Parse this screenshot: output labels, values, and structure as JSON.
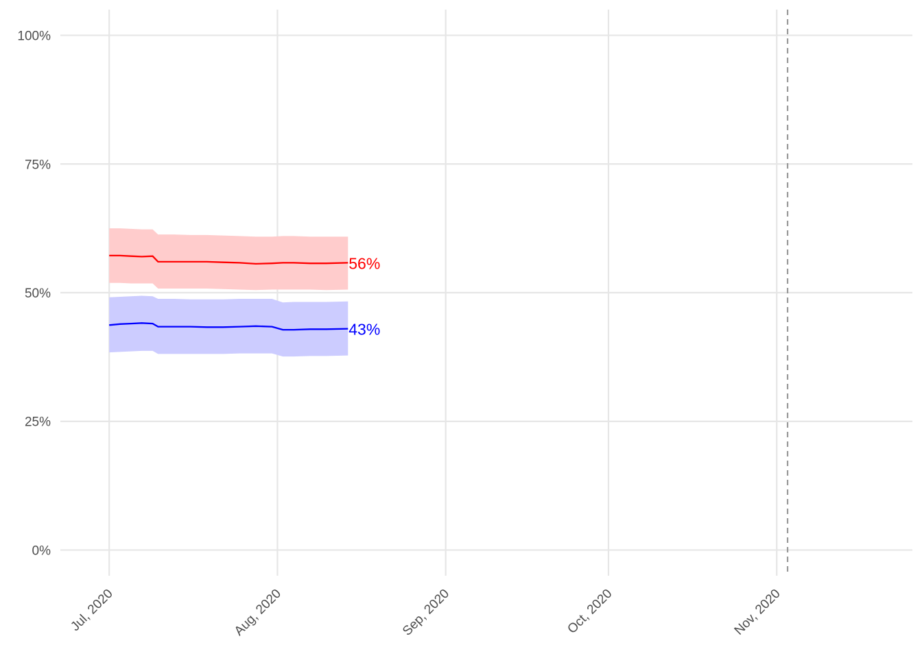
{
  "chart_data": {
    "type": "line",
    "title": "",
    "xlabel": "",
    "ylabel": "",
    "x_range": [
      "2020-06-22",
      "2020-11-26"
    ],
    "ylim": [
      -0.05,
      1.05
    ],
    "grid": true,
    "legend": "none",
    "y_ticks": [
      {
        "value": 0,
        "label": "0%"
      },
      {
        "value": 0.25,
        "label": "25%"
      },
      {
        "value": 0.5,
        "label": "50%"
      },
      {
        "value": 0.75,
        "label": "75%"
      },
      {
        "value": 1,
        "label": "100%"
      }
    ],
    "x_ticks": [
      {
        "date": "2020-07-01",
        "label": "Jul, 2020"
      },
      {
        "date": "2020-08-01",
        "label": "Aug, 2020"
      },
      {
        "date": "2020-09-01",
        "label": "Sep, 2020"
      },
      {
        "date": "2020-10-01",
        "label": "Oct, 2020"
      },
      {
        "date": "2020-11-01",
        "label": "Nov, 2020"
      }
    ],
    "reference_line": {
      "date": "2020-11-03",
      "style": "dashed",
      "color": "#999999"
    },
    "dates": [
      "2020-07-01",
      "2020-07-03",
      "2020-07-05",
      "2020-07-07",
      "2020-07-09",
      "2020-07-10",
      "2020-07-13",
      "2020-07-16",
      "2020-07-19",
      "2020-07-22",
      "2020-07-25",
      "2020-07-28",
      "2020-07-31",
      "2020-08-02",
      "2020-08-04",
      "2020-08-07",
      "2020-08-10",
      "2020-08-14"
    ],
    "series": [
      {
        "color": "#ff0000",
        "band_color": "#ffcccc",
        "end_label": "56%",
        "mean": [
          0.572,
          0.572,
          0.571,
          0.57,
          0.571,
          0.56,
          0.56,
          0.56,
          0.56,
          0.559,
          0.558,
          0.556,
          0.557,
          0.558,
          0.558,
          0.557,
          0.557,
          0.558
        ],
        "lower": [
          0.519,
          0.519,
          0.518,
          0.518,
          0.518,
          0.508,
          0.508,
          0.508,
          0.508,
          0.507,
          0.506,
          0.505,
          0.506,
          0.506,
          0.506,
          0.506,
          0.505,
          0.506
        ],
        "upper": [
          0.625,
          0.625,
          0.624,
          0.623,
          0.623,
          0.613,
          0.613,
          0.612,
          0.612,
          0.611,
          0.61,
          0.609,
          0.609,
          0.61,
          0.61,
          0.609,
          0.609,
          0.609
        ]
      },
      {
        "color": "#0000ff",
        "band_color": "#ccccff",
        "end_label": "43%",
        "mean": [
          0.437,
          0.439,
          0.44,
          0.441,
          0.44,
          0.434,
          0.434,
          0.434,
          0.433,
          0.433,
          0.434,
          0.435,
          0.434,
          0.428,
          0.428,
          0.429,
          0.429,
          0.43
        ],
        "lower": [
          0.384,
          0.385,
          0.386,
          0.387,
          0.387,
          0.381,
          0.381,
          0.381,
          0.381,
          0.381,
          0.382,
          0.382,
          0.382,
          0.376,
          0.376,
          0.377,
          0.377,
          0.378
        ],
        "upper": [
          0.491,
          0.492,
          0.493,
          0.494,
          0.493,
          0.488,
          0.488,
          0.487,
          0.487,
          0.487,
          0.488,
          0.488,
          0.488,
          0.481,
          0.482,
          0.482,
          0.482,
          0.483
        ]
      }
    ]
  }
}
